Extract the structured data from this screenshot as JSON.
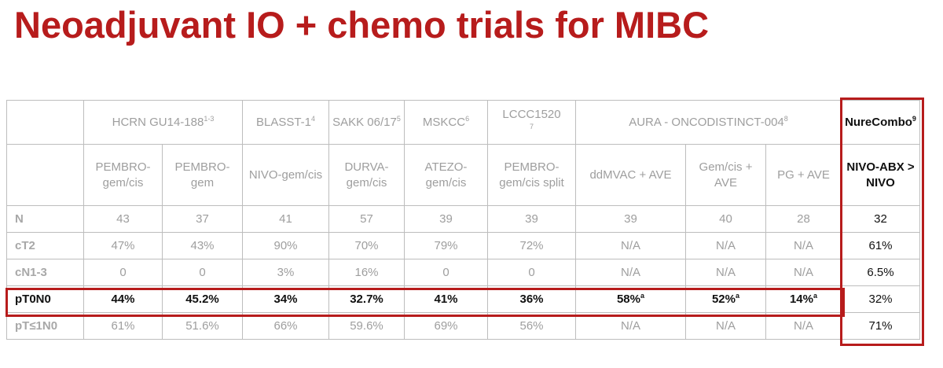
{
  "title": "Neoadjuvant IO + chemo trials for MIBC",
  "trials": {
    "hcrn": "HCRN GU14-188",
    "hcrn_ref": "1-3",
    "blasst": "BLASST-1",
    "blasst_ref": "4",
    "sakk": "SAKK 06/17",
    "sakk_ref": "5",
    "mskcc": "MSKCC",
    "mskcc_ref": "6",
    "lccc": "LCCC1520",
    "lccc_ref": "7",
    "aura": "AURA - ONCODISTINCT-004",
    "aura_ref": "8",
    "nurecombo": "NureCombo",
    "nurecombo_ref": "9"
  },
  "arms": [
    "PEMBRO-gem/cis",
    "PEMBRO-gem",
    "NIVO-gem/cis",
    "DURVA-gem/cis",
    "ATEZO-gem/cis",
    "PEMBRO-gem/cis split",
    "ddMVAC + AVE",
    "Gem/cis + AVE",
    "PG + AVE",
    "NIVO-ABX > NIVO"
  ],
  "rows": [
    {
      "label": "N",
      "cells": [
        "43",
        "37",
        "41",
        "57",
        "39",
        "39",
        "39",
        "40",
        "28",
        "32"
      ]
    },
    {
      "label": "cT2",
      "cells": [
        "47%",
        "43%",
        "90%",
        "70%",
        "79%",
        "72%",
        "N/A",
        "N/A",
        "N/A",
        "61%"
      ]
    },
    {
      "label": "cN1-3",
      "cells": [
        "0",
        "0",
        "3%",
        "16%",
        "0",
        "0",
        "N/A",
        "N/A",
        "N/A",
        "6.5%"
      ]
    },
    {
      "label": "pT0N0",
      "cells": [
        "44%",
        "45.2%",
        "34%",
        "32.7%",
        "41%",
        "36%",
        "58%",
        "52%",
        "14%",
        "32%"
      ]
    },
    {
      "label": "pT≤1N0",
      "cells": [
        "61%",
        "51.6%",
        "66%",
        "59.6%",
        "69%",
        "56%",
        "N/A",
        "N/A",
        "N/A",
        "71%"
      ]
    }
  ],
  "footnote_mark": "a"
}
